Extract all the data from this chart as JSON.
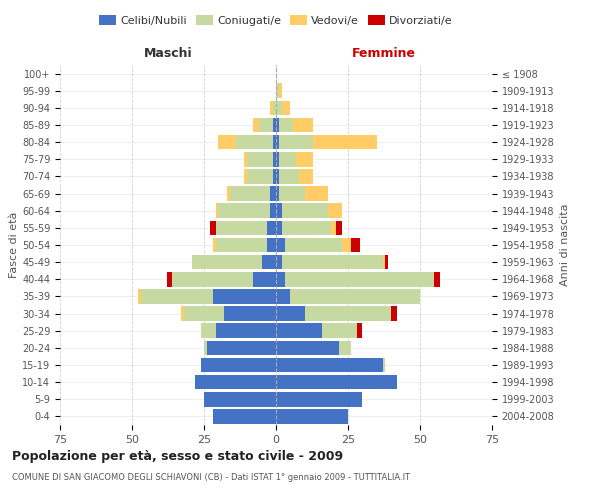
{
  "age_groups": [
    "0-4",
    "5-9",
    "10-14",
    "15-19",
    "20-24",
    "25-29",
    "30-34",
    "35-39",
    "40-44",
    "45-49",
    "50-54",
    "55-59",
    "60-64",
    "65-69",
    "70-74",
    "75-79",
    "80-84",
    "85-89",
    "90-94",
    "95-99",
    "100+"
  ],
  "birth_years": [
    "2004-2008",
    "1999-2003",
    "1994-1998",
    "1989-1993",
    "1984-1988",
    "1979-1983",
    "1974-1978",
    "1969-1973",
    "1964-1968",
    "1959-1963",
    "1954-1958",
    "1949-1953",
    "1944-1948",
    "1939-1943",
    "1934-1938",
    "1929-1933",
    "1924-1928",
    "1919-1923",
    "1914-1918",
    "1909-1913",
    "≤ 1908"
  ],
  "male": {
    "celibi": [
      22,
      25,
      28,
      26,
      24,
      21,
      18,
      22,
      8,
      5,
      3,
      3,
      2,
      2,
      1,
      1,
      1,
      1,
      0,
      0,
      0
    ],
    "coniugati": [
      0,
      0,
      0,
      0,
      1,
      5,
      14,
      25,
      28,
      24,
      18,
      18,
      18,
      14,
      9,
      9,
      13,
      5,
      1,
      0,
      0
    ],
    "vedovi": [
      0,
      0,
      0,
      0,
      0,
      0,
      1,
      1,
      0,
      0,
      1,
      0,
      1,
      1,
      1,
      1,
      6,
      2,
      1,
      0,
      0
    ],
    "divorziati": [
      0,
      0,
      0,
      0,
      0,
      0,
      0,
      0,
      2,
      0,
      0,
      2,
      0,
      0,
      0,
      0,
      0,
      0,
      0,
      0,
      0
    ]
  },
  "female": {
    "nubili": [
      25,
      30,
      42,
      37,
      22,
      16,
      10,
      5,
      3,
      2,
      3,
      2,
      2,
      1,
      1,
      1,
      1,
      1,
      0,
      0,
      0
    ],
    "coniugate": [
      0,
      0,
      0,
      1,
      4,
      12,
      30,
      45,
      52,
      35,
      20,
      17,
      16,
      9,
      7,
      6,
      12,
      5,
      2,
      1,
      0
    ],
    "vedove": [
      0,
      0,
      0,
      0,
      0,
      0,
      0,
      0,
      0,
      1,
      3,
      2,
      5,
      8,
      5,
      6,
      22,
      7,
      3,
      1,
      0
    ],
    "divorziate": [
      0,
      0,
      0,
      0,
      0,
      2,
      2,
      0,
      2,
      1,
      3,
      2,
      0,
      0,
      0,
      0,
      0,
      0,
      0,
      0,
      0
    ]
  },
  "colors": {
    "celibi_nubili": "#4472C4",
    "coniugati": "#C5D9A0",
    "vedovi": "#FFCC66",
    "divorziati": "#CC0000"
  },
  "xlim": 75,
  "title": "Popolazione per età, sesso e stato civile - 2009",
  "subtitle": "COMUNE DI SAN GIACOMO DEGLI SCHIAVONI (CB) - Dati ISTAT 1° gennaio 2009 - TUTTITALIA.IT",
  "ylabel_left": "Fasce di età",
  "ylabel_right": "Anni di nascita",
  "xlabel_left": "Maschi",
  "xlabel_right": "Femmine",
  "bg_color": "#ffffff",
  "grid_color": "#cccccc"
}
